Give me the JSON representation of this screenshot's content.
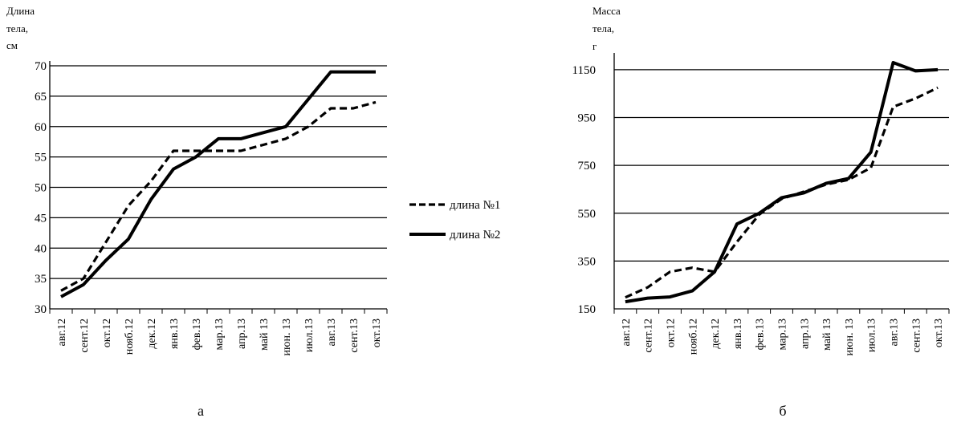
{
  "chart_data": [
    {
      "type": "line",
      "panel_label": "а",
      "ylabel_lines": [
        "Длина",
        "тела,",
        "см"
      ],
      "xlabel": "",
      "categories": [
        "авг.12",
        "сент.12",
        "окт.12",
        "нояб.12",
        "дек.12",
        "янв.13",
        "фев.13",
        "мар.13",
        "апр.13",
        "май 13",
        "июн. 13",
        "июл.13",
        "авг.13",
        "сент.13",
        "окт.13"
      ],
      "ylim": [
        30,
        70
      ],
      "yticks": [
        "30",
        "35",
        "40",
        "45",
        "50",
        "55",
        "60",
        "65",
        "70"
      ],
      "grid": "horizontal",
      "legend_position": "right",
      "series": [
        {
          "name": "длина №1",
          "style": "dashed",
          "values": [
            33,
            35,
            41,
            47,
            51,
            56,
            56,
            56,
            56,
            57,
            58,
            60,
            63,
            63,
            64
          ]
        },
        {
          "name": "длина №2",
          "style": "solid",
          "values": [
            32,
            34,
            38,
            41.5,
            48,
            53,
            55,
            58,
            58,
            59,
            60,
            64.5,
            69,
            69,
            69
          ]
        }
      ]
    },
    {
      "type": "line",
      "panel_label": "б",
      "ylabel_lines": [
        "Масса",
        "тела,",
        "г"
      ],
      "xlabel": "",
      "categories": [
        "авг.12",
        "сент.12",
        "окт.12",
        "нояб.12",
        "дек.12",
        "янв.13",
        "фев.13",
        "мар.13",
        "апр.13",
        "май 13",
        "июн. 13",
        "июл.13",
        "авг.13",
        "сент.13",
        "окт.13"
      ],
      "ylim": [
        150,
        1200
      ],
      "yticks": [
        "150",
        "350",
        "550",
        "750",
        "950",
        "1150"
      ],
      "grid": "horizontal",
      "series": [
        {
          "style": "dashed",
          "values": [
            198,
            240,
            305,
            322,
            305,
            430,
            545,
            610,
            640,
            670,
            690,
            740,
            995,
            1030,
            1075
          ]
        },
        {
          "style": "solid",
          "values": [
            180,
            195,
            200,
            225,
            305,
            505,
            550,
            615,
            635,
            675,
            695,
            805,
            1180,
            1145,
            1150
          ]
        }
      ]
    }
  ]
}
